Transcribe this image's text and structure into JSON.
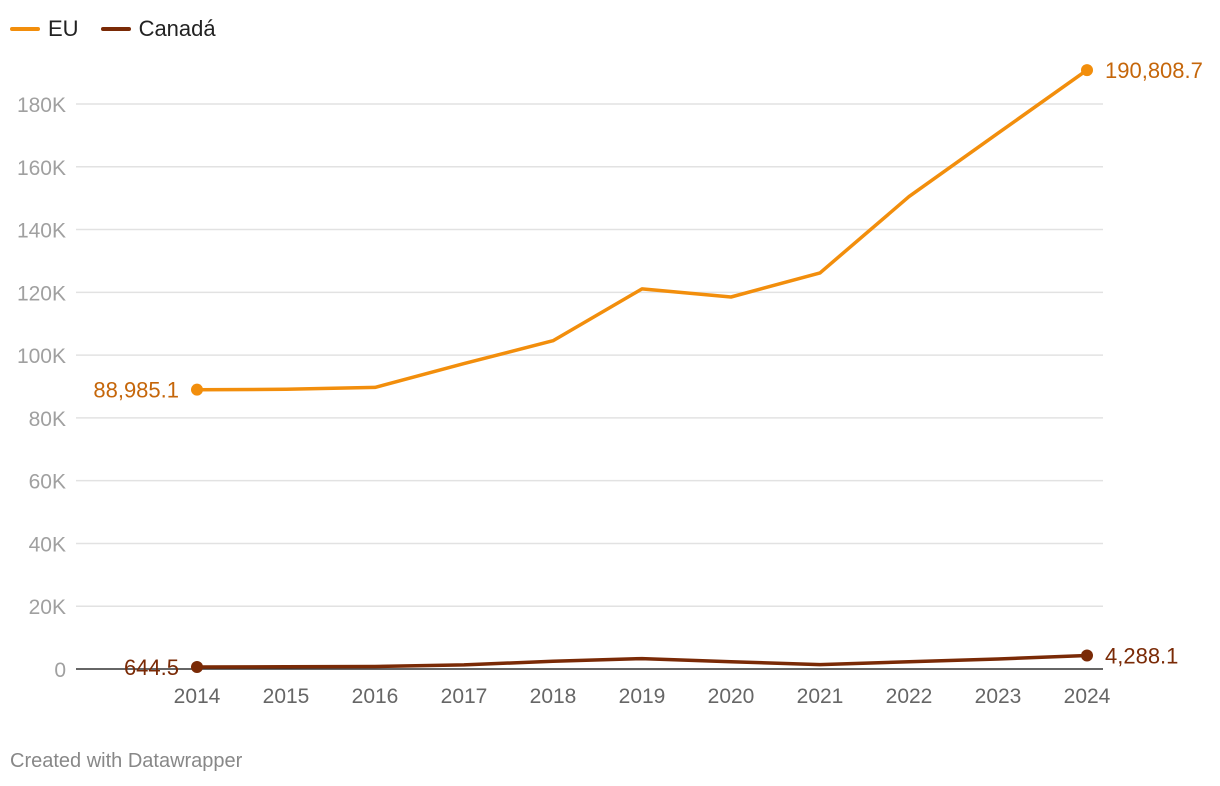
{
  "legend": [
    {
      "name": "EU",
      "color": "#f28e0c"
    },
    {
      "name": "Canadá",
      "color": "#7a2a06"
    }
  ],
  "chart_data": {
    "type": "line",
    "x": [
      "2014",
      "2015",
      "2016",
      "2017",
      "2018",
      "2019",
      "2020",
      "2021",
      "2022",
      "2023",
      "2024"
    ],
    "yticks": [
      {
        "value": 0,
        "label": "0"
      },
      {
        "value": 20000,
        "label": "20K"
      },
      {
        "value": 40000,
        "label": "40K"
      },
      {
        "value": 60000,
        "label": "60K"
      },
      {
        "value": 80000,
        "label": "80K"
      },
      {
        "value": 100000,
        "label": "100K"
      },
      {
        "value": 120000,
        "label": "120K"
      },
      {
        "value": 140000,
        "label": "140K"
      },
      {
        "value": 160000,
        "label": "160K"
      },
      {
        "value": 180000,
        "label": "180K"
      }
    ],
    "ylim": [
      0,
      200000
    ],
    "grid": true,
    "legend_position": "top-left",
    "series": [
      {
        "name": "EU",
        "color": "#f28e0c",
        "label_color": "#c5660a",
        "values": [
          88985.1,
          89100,
          89700,
          97300,
          104600,
          121100,
          118500,
          126200,
          150500,
          170700,
          190808.7
        ],
        "start_label": "88,985.1",
        "end_label": "190,808.7"
      },
      {
        "name": "Canadá",
        "color": "#7a2a06",
        "label_color": "#7a2a06",
        "values": [
          644.5,
          700,
          800,
          1300,
          2500,
          3300,
          2300,
          1400,
          2300,
          3200,
          4288.1
        ],
        "start_label": "644.5",
        "end_label": "4,288.1"
      }
    ]
  },
  "footer": {
    "credit": "Created with Datawrapper"
  }
}
